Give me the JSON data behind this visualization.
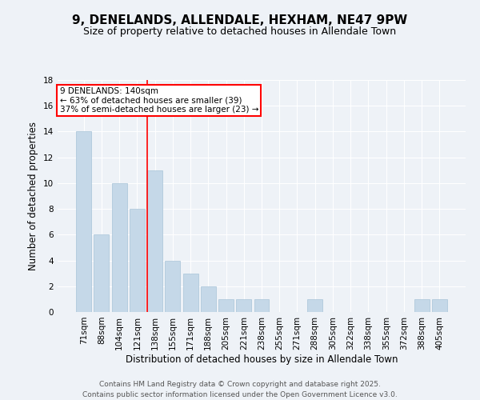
{
  "title": "9, DENELANDS, ALLENDALE, HEXHAM, NE47 9PW",
  "subtitle": "Size of property relative to detached houses in Allendale Town",
  "xlabel": "Distribution of detached houses by size in Allendale Town",
  "ylabel": "Number of detached properties",
  "categories": [
    "71sqm",
    "88sqm",
    "104sqm",
    "121sqm",
    "138sqm",
    "155sqm",
    "171sqm",
    "188sqm",
    "205sqm",
    "221sqm",
    "238sqm",
    "255sqm",
    "271sqm",
    "288sqm",
    "305sqm",
    "322sqm",
    "338sqm",
    "355sqm",
    "372sqm",
    "388sqm",
    "405sqm"
  ],
  "values": [
    14,
    6,
    10,
    8,
    11,
    4,
    3,
    2,
    1,
    1,
    1,
    0,
    0,
    1,
    0,
    0,
    0,
    0,
    0,
    1,
    1
  ],
  "bar_color": "#c5d8e8",
  "bar_edgecolor": "#a8c4d8",
  "property_line_index": 4,
  "property_line_color": "red",
  "annotation_text": "9 DENELANDS: 140sqm\n← 63% of detached houses are smaller (39)\n37% of semi-detached houses are larger (23) →",
  "annotation_box_color": "white",
  "annotation_box_edgecolor": "red",
  "ylim": [
    0,
    18
  ],
  "yticks": [
    0,
    2,
    4,
    6,
    8,
    10,
    12,
    14,
    16,
    18
  ],
  "footer": "Contains HM Land Registry data © Crown copyright and database right 2025.\nContains public sector information licensed under the Open Government Licence v3.0.",
  "background_color": "#eef2f7",
  "grid_color": "white",
  "title_fontsize": 11,
  "subtitle_fontsize": 9,
  "axis_label_fontsize": 8.5,
  "tick_fontsize": 7.5,
  "footer_fontsize": 6.5,
  "annotation_fontsize": 7.5
}
